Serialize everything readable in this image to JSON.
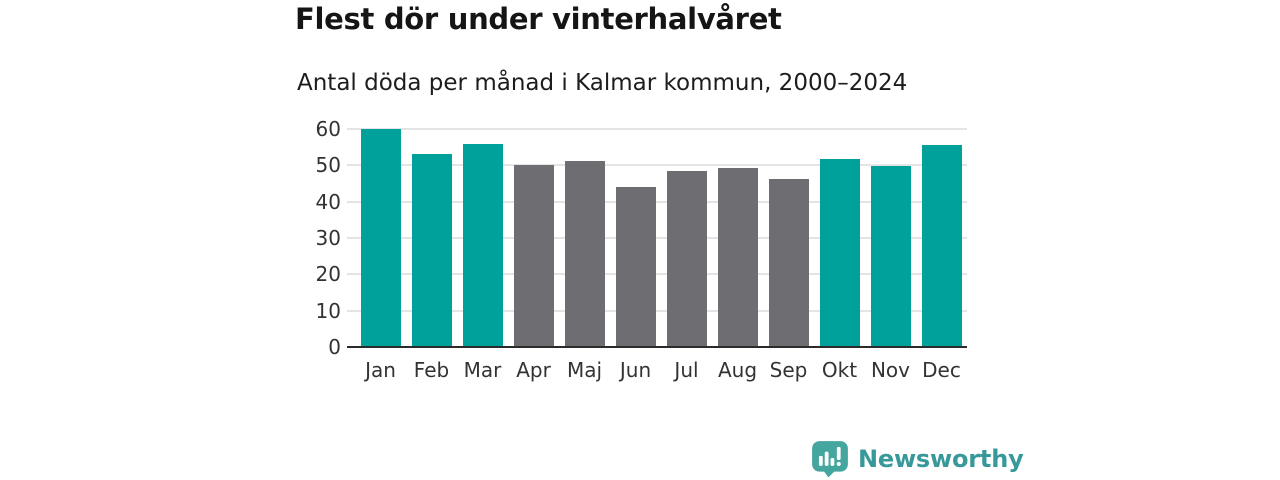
{
  "chart_data": {
    "type": "bar",
    "title": "Flest dör under vinterhalvåret",
    "subtitle": "Antal döda per månad i Kalmar kommun, 2000–2024",
    "categories": [
      "Jan",
      "Feb",
      "Mar",
      "Apr",
      "Maj",
      "Jun",
      "Jul",
      "Aug",
      "Sep",
      "Okt",
      "Nov",
      "Dec"
    ],
    "values": [
      60,
      53,
      56,
      50.1,
      51.2,
      44,
      48.5,
      49.4,
      46.3,
      51.7,
      49.8,
      55.6
    ],
    "bar_colors": [
      "#00a19a",
      "#00a19a",
      "#00a19a",
      "#6e6e72",
      "#6e6e72",
      "#6e6e72",
      "#6e6e72",
      "#6e6e72",
      "#6e6e72",
      "#00a19a",
      "#00a19a",
      "#00a19a"
    ],
    "highlight_color": "#00a19a",
    "base_color": "#6e6e72",
    "xlabel": "",
    "ylabel": "",
    "ylim": [
      0,
      60
    ],
    "yticks": [
      0,
      10,
      20,
      30,
      40,
      50,
      60
    ],
    "grid": true,
    "legend_position": "none"
  },
  "colors": {
    "grid": "#e4e4e4",
    "axis_line": "#2b2b2b",
    "tick_text": "#333333",
    "title_text": "#151515",
    "logo_teal": "#38999a",
    "logo_icon_teal": "#44a69f"
  },
  "logo": {
    "text": "Newsworthy",
    "icon": "bar-chart-speech-bubble-icon"
  }
}
